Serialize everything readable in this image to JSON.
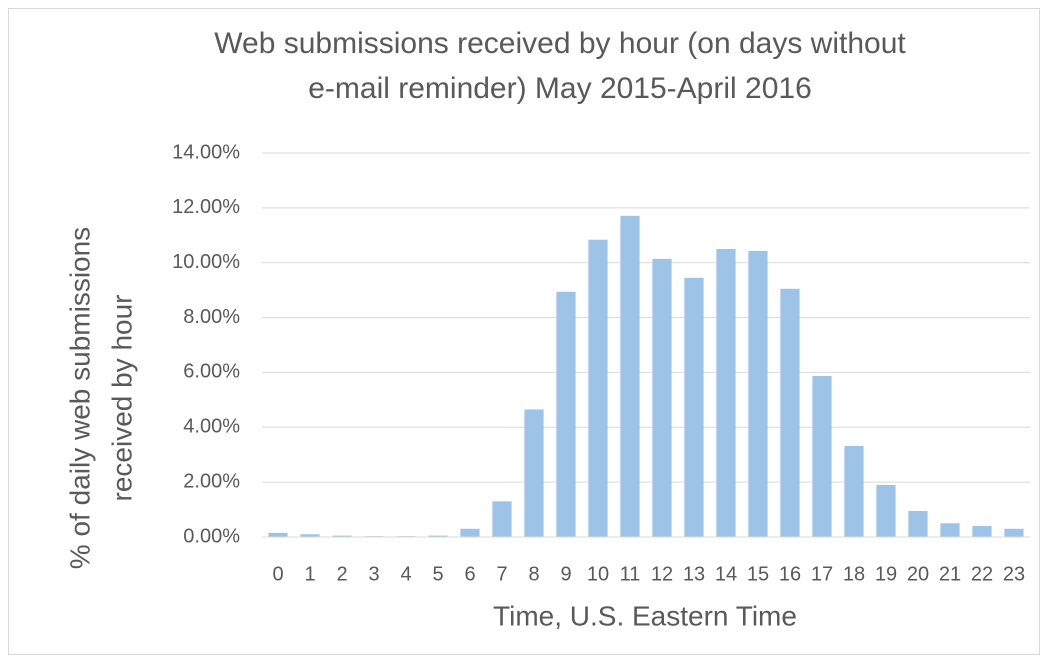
{
  "chart_data": {
    "type": "bar",
    "title": [
      "Web submissions received by hour (on days without",
      "e-mail reminder) May 2015-April 2016"
    ],
    "x_label": "Time, U.S. Eastern Time",
    "y_label": [
      "% of daily web submissions",
      "received by hour"
    ],
    "categories": [
      "0",
      "1",
      "2",
      "3",
      "4",
      "5",
      "6",
      "7",
      "8",
      "9",
      "10",
      "11",
      "12",
      "13",
      "14",
      "15",
      "16",
      "17",
      "18",
      "19",
      "20",
      "21",
      "22",
      "23"
    ],
    "values": [
      0.15,
      0.1,
      0.05,
      0.03,
      0.03,
      0.05,
      0.3,
      1.3,
      4.65,
      8.94,
      10.84,
      11.71,
      10.14,
      9.45,
      10.5,
      10.43,
      9.05,
      5.87,
      3.32,
      1.9,
      0.95,
      0.5,
      0.4,
      0.3
    ],
    "color": "#9dc3e6",
    "ylim": [
      0,
      14
    ],
    "yticks": [
      {
        "value": 0,
        "label": "0.00%"
      },
      {
        "value": 2,
        "label": "2.00%"
      },
      {
        "value": 4,
        "label": "4.00%"
      },
      {
        "value": 6,
        "label": "6.00%"
      },
      {
        "value": 8,
        "label": "8.00%"
      },
      {
        "value": 10,
        "label": "10.00%"
      },
      {
        "value": 12,
        "label": "12.00%"
      },
      {
        "value": 14,
        "label": "14.00%"
      }
    ],
    "grid": true
  }
}
